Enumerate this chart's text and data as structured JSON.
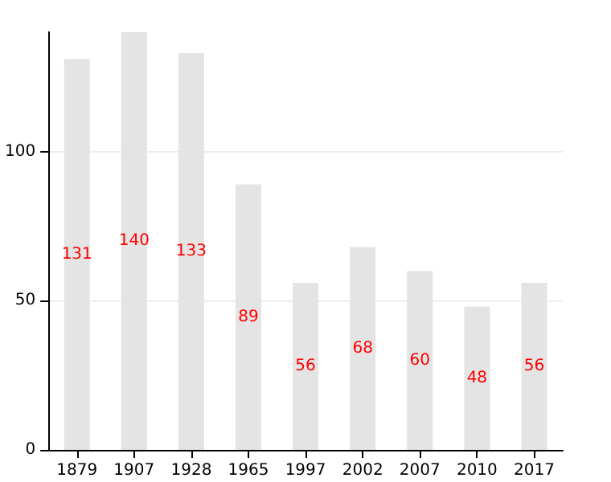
{
  "chart_data": {
    "type": "bar",
    "categories": [
      "1879",
      "1907",
      "1928",
      "1965",
      "1997",
      "2002",
      "2007",
      "2010",
      "2017"
    ],
    "values": [
      131,
      140,
      133,
      89,
      56,
      68,
      60,
      48,
      56
    ],
    "color": "#e4e4e4",
    "ylim": [
      0,
      140
    ],
    "yticks": [
      0,
      50,
      100
    ],
    "grid": "y",
    "data_labels": true
  }
}
